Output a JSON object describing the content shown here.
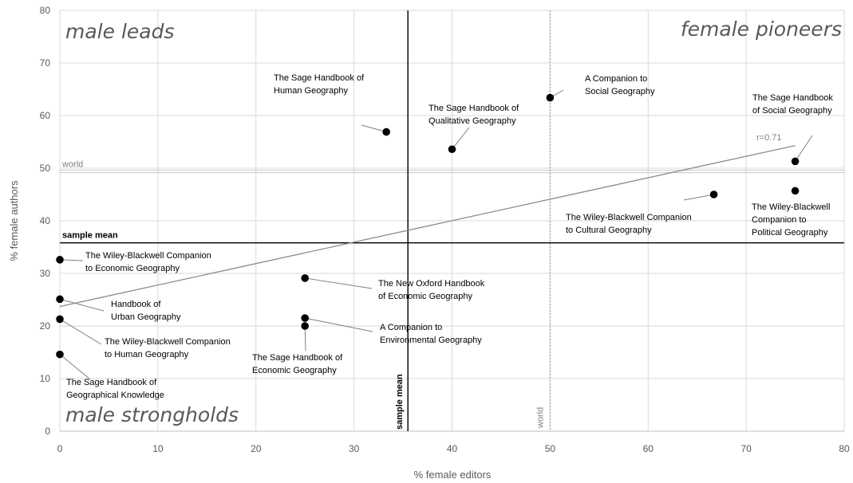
{
  "chart_data": {
    "type": "scatter",
    "xlabel": "% female editors",
    "ylabel": "% female authors",
    "xlim": [
      0,
      80
    ],
    "ylim": [
      0,
      80
    ],
    "xticks": [
      "0",
      "10",
      "20",
      "30",
      "40",
      "50",
      "60",
      "70",
      "80"
    ],
    "yticks": [
      "0",
      "10",
      "20",
      "30",
      "40",
      "50",
      "60",
      "70",
      "80"
    ],
    "grid": true,
    "quadrant_labels": {
      "top_left": "male leads",
      "top_right": "female pioneers",
      "bottom_left": "male strongholds"
    },
    "reference_lines": {
      "sample_mean_x": 35.5,
      "sample_mean_y": 35.8,
      "world_x": 50,
      "world_y": 49.3,
      "sample_mean_label": "sample mean",
      "world_label": "world"
    },
    "trendline": {
      "label": "r=0.71",
      "x": [
        0,
        75
      ],
      "y": [
        23.7,
        54.3
      ]
    },
    "points": [
      {
        "x": 33.3,
        "y": 56.9,
        "label_lines": [
          "The Sage Handbook of",
          "Human Geography"
        ]
      },
      {
        "x": 40.0,
        "y": 53.6,
        "label_lines": [
          "The Sage Handbook of",
          "Qualitative Geography"
        ]
      },
      {
        "x": 50.0,
        "y": 63.4,
        "label_lines": [
          "A Companion to",
          "Social Geography"
        ]
      },
      {
        "x": 75.0,
        "y": 51.3,
        "label_lines": [
          "The Sage Handbook",
          "of Social Geography"
        ]
      },
      {
        "x": 66.7,
        "y": 45.0,
        "label_lines": [
          "The Wiley-Blackwell Companion",
          "to Cultural Geography"
        ]
      },
      {
        "x": 75.0,
        "y": 45.7,
        "label_lines": [
          "The Wiley-Blackwell",
          "Companion to",
          "Political Geography"
        ]
      },
      {
        "x": 0.0,
        "y": 32.6,
        "label_lines": [
          "The Wiley-Blackwell Companion",
          "to Economic Geography"
        ]
      },
      {
        "x": 25.0,
        "y": 29.1,
        "label_lines": [
          "The New Oxford Handbook",
          "of Economic Geography"
        ]
      },
      {
        "x": 0.0,
        "y": 25.1,
        "label_lines": [
          "Handbook of",
          "Urban Geography"
        ]
      },
      {
        "x": 25.0,
        "y": 21.5,
        "label_lines": [
          "A Companion to",
          "Environmental Geography"
        ]
      },
      {
        "x": 0.0,
        "y": 21.3,
        "label_lines": [
          "The Wiley-Blackwell Companion",
          "to Human Geography"
        ]
      },
      {
        "x": 25.0,
        "y": 20.0,
        "label_lines": [
          "The Sage Handbook of",
          "Economic Geography"
        ]
      },
      {
        "x": 0.0,
        "y": 14.6,
        "label_lines": [
          "The Sage Handbook of",
          "Geographical Knowledge"
        ]
      }
    ]
  }
}
